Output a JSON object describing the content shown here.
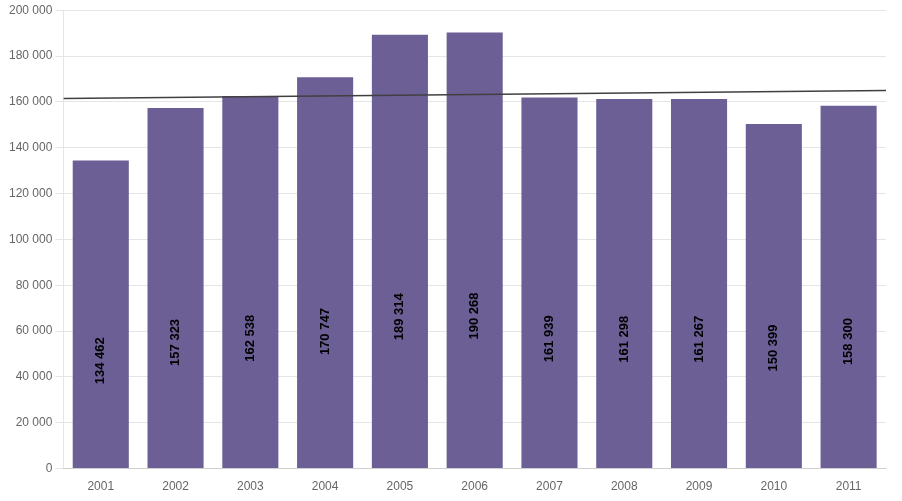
{
  "chart_data": {
    "type": "bar",
    "categories": [
      "2001",
      "2002",
      "2003",
      "2004",
      "2005",
      "2006",
      "2007",
      "2008",
      "2009",
      "2010",
      "2011"
    ],
    "values": [
      134462,
      157323,
      162538,
      170747,
      189314,
      190268,
      161939,
      161298,
      161267,
      150399,
      158300
    ],
    "value_labels": [
      "134 462",
      "157 323",
      "162 538",
      "170 747",
      "189 314",
      "190 268",
      "161 939",
      "161 298",
      "161 267",
      "150 399",
      "158 300"
    ],
    "data_labels": true,
    "label_color": "#000000",
    "color": "#6B5F96",
    "trend_line": {
      "values": [
        161500,
        165000
      ],
      "color": "#404040"
    },
    "ylim": [
      0,
      200000
    ],
    "yticks": [
      0,
      {
        "value": 20000,
        "label": "20 000"
      },
      {
        "value": 40000,
        "label": "40 000"
      },
      {
        "value": 60000,
        "label": "60 000"
      },
      {
        "value": 80000,
        "label": "80 000"
      },
      {
        "value": 100000,
        "label": "100 000"
      },
      {
        "value": 120000,
        "label": "120 000"
      },
      {
        "value": 140000,
        "label": "140 000"
      },
      {
        "value": 160000,
        "label": "160 000"
      },
      {
        "value": 180000,
        "label": "180 000"
      },
      {
        "value": 200000,
        "label": "200 000"
      }
    ],
    "grid": true
  }
}
